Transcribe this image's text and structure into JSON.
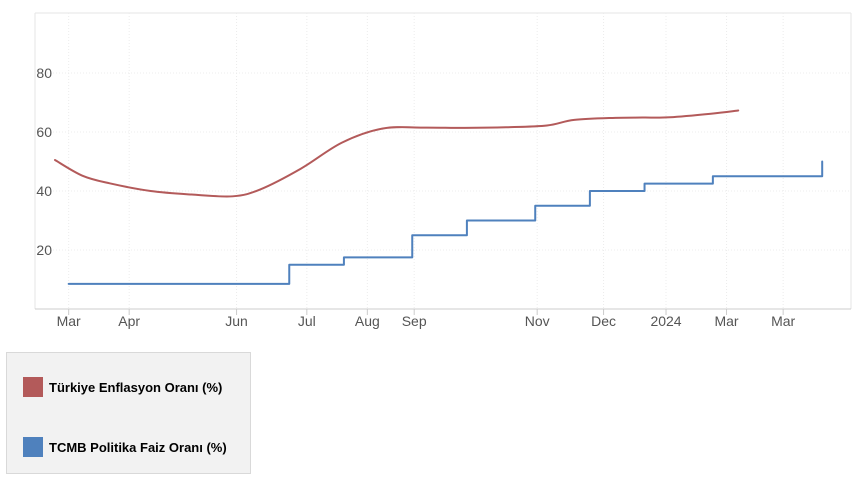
{
  "chart_data": {
    "type": "line",
    "title": "",
    "xlabel": "",
    "ylabel": "",
    "ylim": [
      0,
      100
    ],
    "y_ticks": [
      20,
      40,
      60,
      80
    ],
    "x_range": [
      "2023-02-22",
      "2024-03-25"
    ],
    "x_ticks": [
      {
        "date": "2023-03-01",
        "label": "Mar"
      },
      {
        "date": "2023-04-01",
        "label": "Apr"
      },
      {
        "date": "2023-05-26",
        "label": "Jun"
      },
      {
        "date": "2023-07-01",
        "label": "Jul"
      },
      {
        "date": "2023-08-01",
        "label": "Aug"
      },
      {
        "date": "2023-08-25",
        "label": "Sep"
      },
      {
        "date": "2023-10-27",
        "label": "Nov"
      },
      {
        "date": "2023-11-30",
        "label": "Dec"
      },
      {
        "date": "2024-01-01",
        "label": "2024"
      },
      {
        "date": "2024-02-01",
        "label": "Mar"
      },
      {
        "date": "2024-03-01",
        "label": "Mar"
      }
    ],
    "grid": true,
    "legend_position": "bottom-left",
    "series": [
      {
        "name": "Türkiye Enflasyon Oranı (%)",
        "color": "#b35a5a",
        "style": "smooth",
        "points": [
          [
            "2023-02-22",
            50.5
          ],
          [
            "2023-03-08",
            45.2
          ],
          [
            "2023-03-22",
            42.6
          ],
          [
            "2023-04-12",
            40.0
          ],
          [
            "2023-05-03",
            38.8
          ],
          [
            "2023-05-24",
            38.2
          ],
          [
            "2023-06-07",
            40.5
          ],
          [
            "2023-06-28",
            47.6
          ],
          [
            "2023-07-19",
            56.4
          ],
          [
            "2023-08-09",
            61.2
          ],
          [
            "2023-08-30",
            61.5
          ],
          [
            "2023-09-20",
            61.4
          ],
          [
            "2023-10-11",
            61.6
          ],
          [
            "2023-11-01",
            62.2
          ],
          [
            "2023-11-15",
            64.1
          ],
          [
            "2023-12-06",
            64.8
          ],
          [
            "2023-12-20",
            64.9
          ],
          [
            "2024-01-03",
            65.0
          ],
          [
            "2024-01-24",
            66.2
          ],
          [
            "2024-02-07",
            67.3
          ]
        ]
      },
      {
        "name": "TCMB Politika Faiz Oranı (%)",
        "color": "#4f81bd",
        "style": "step",
        "points": [
          [
            "2023-03-01",
            8.5
          ],
          [
            "2023-06-22",
            15.0
          ],
          [
            "2023-07-20",
            17.5
          ],
          [
            "2023-08-24",
            25.0
          ],
          [
            "2023-09-21",
            30.0
          ],
          [
            "2023-10-26",
            35.0
          ],
          [
            "2023-11-23",
            40.0
          ],
          [
            "2023-12-21",
            42.5
          ],
          [
            "2024-01-25",
            45.0
          ],
          [
            "2024-03-21",
            50.0
          ]
        ]
      }
    ]
  }
}
